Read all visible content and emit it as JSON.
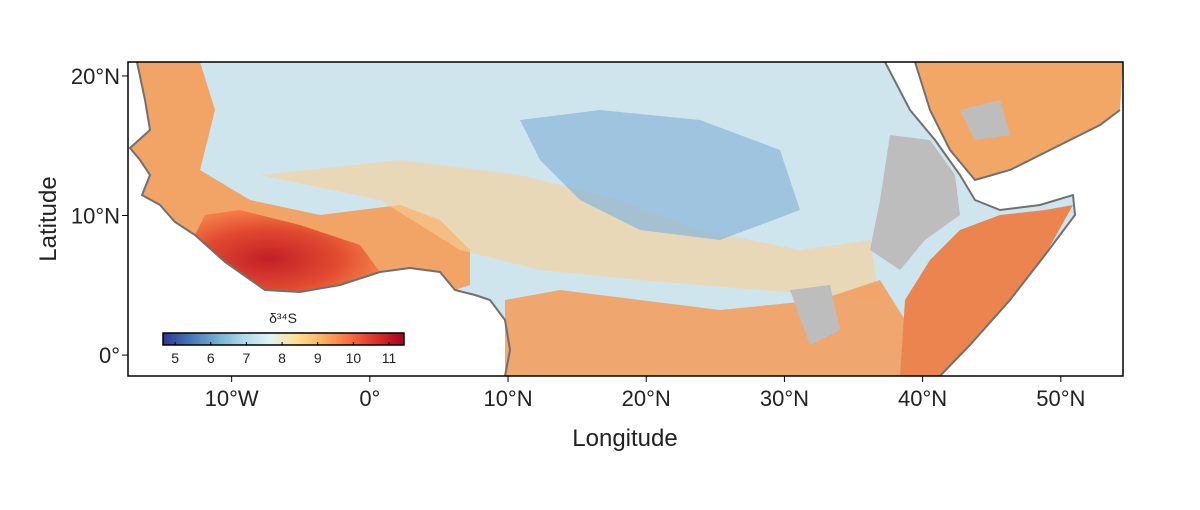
{
  "chart_data": {
    "type": "map",
    "xlabel": "Longitude",
    "ylabel": "Latitude",
    "xlim": [
      -17.5,
      54.5
    ],
    "ylim": [
      -1.5,
      21
    ],
    "xticks": [
      {
        "value": -10,
        "label": "10°W"
      },
      {
        "value": 0,
        "label": "0°"
      },
      {
        "value": 10,
        "label": "10°N"
      },
      {
        "value": 20,
        "label": "20°N"
      },
      {
        "value": 30,
        "label": "30°N"
      },
      {
        "value": 40,
        "label": "40°N"
      },
      {
        "value": 50,
        "label": "50°N"
      }
    ],
    "yticks": [
      {
        "value": 0,
        "label": "0°"
      },
      {
        "value": 10,
        "label": "10°N"
      },
      {
        "value": 20,
        "label": "20°N"
      }
    ],
    "colorbar": {
      "title": "δ³⁴S",
      "lim": [
        4.66,
        11.42
      ],
      "ticks": [
        5,
        6,
        7,
        8,
        9,
        10,
        11
      ],
      "colors": [
        "#313695",
        "#4575b4",
        "#74add1",
        "#abd9e9",
        "#e0f3f8",
        "#fee090",
        "#fdae61",
        "#f46d43",
        "#d73027",
        "#a50026"
      ]
    }
  }
}
